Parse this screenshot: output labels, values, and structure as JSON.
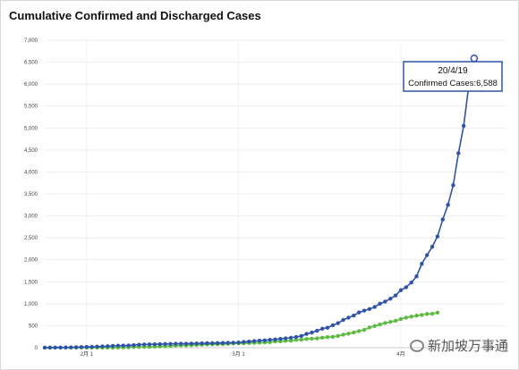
{
  "chart_data": {
    "type": "line",
    "title": "Cumulative Confirmed and Discharged Cases",
    "xlabel": "",
    "ylabel": "",
    "ylim": [
      0,
      7000
    ],
    "yticks": [
      "0",
      "500",
      "1,000",
      "1,500",
      "2,000",
      "2,500",
      "3,000",
      "3,500",
      "4,000",
      "4,500",
      "5,000",
      "5,500",
      "6,000",
      "6,500",
      "7,000"
    ],
    "xticks": [
      {
        "day": 9,
        "label": "2月 1"
      },
      {
        "day": 38,
        "label": "3月 1"
      },
      {
        "day": 69,
        "label": "4月"
      }
    ],
    "x_start": 1,
    "x_end": 89,
    "grid": true,
    "legend": "none",
    "series": [
      {
        "color": "#2f53a7",
        "values": [
          1,
          1,
          3,
          4,
          5,
          7,
          10,
          13,
          16,
          18,
          24,
          28,
          33,
          40,
          45,
          47,
          50,
          58,
          67,
          72,
          75,
          77,
          81,
          84,
          86,
          89,
          90,
          91,
          93,
          96,
          98,
          102,
          103,
          106,
          108,
          110,
          112,
          117,
          130,
          138,
          150,
          160,
          166,
          178,
          187,
          200,
          212,
          226,
          243,
          266,
          313,
          345,
          385,
          432,
          455,
          509,
          558,
          631,
          683,
          732,
          802,
          844,
          879,
          926,
          1000,
          1049,
          1114,
          1189,
          1309,
          1375,
          1481,
          1623,
          1910,
          2108,
          2299,
          2532,
          2918,
          3252,
          3699,
          4427,
          5050,
          5992,
          6588
        ]
      },
      {
        "color": "#5dbb3f",
        "values": [
          0,
          0,
          0,
          0,
          0,
          0,
          0,
          0,
          0,
          0,
          0,
          0,
          0,
          0,
          2,
          7,
          9,
          15,
          17,
          18,
          19,
          24,
          29,
          34,
          37,
          47,
          51,
          53,
          58,
          62,
          67,
          72,
          76,
          78,
          81,
          88,
          96,
          97,
          101,
          105,
          109,
          114,
          117,
          124,
          140,
          144,
          156,
          160,
          177,
          183,
          198,
          204,
          212,
          228,
          240,
          245,
          266,
          297,
          320,
          344,
          377,
          406,
          460,
          492,
          528,
          560,
          586,
          611,
          652,
          683,
          708,
          728,
          745,
          768,
          771,
          798
        ]
      }
    ],
    "tooltip": {
      "date": "20/4/19",
      "text": "Confirmed Cases:6,588"
    }
  },
  "watermark": {
    "text": "新加坡万事通"
  }
}
